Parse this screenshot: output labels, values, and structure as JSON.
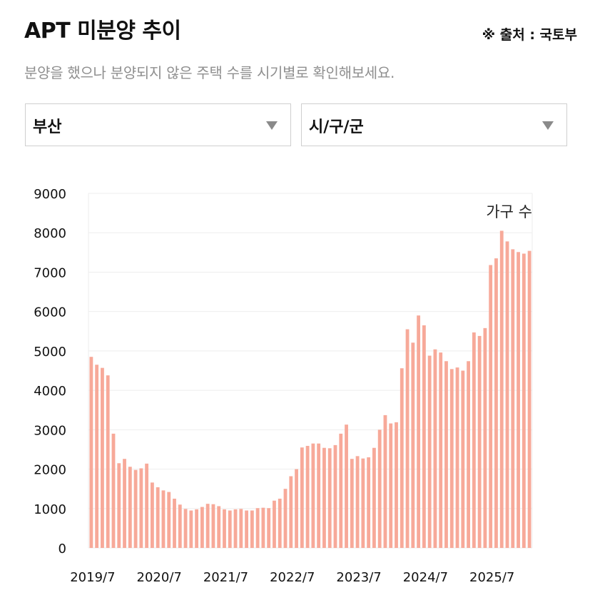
{
  "header": {
    "title": "APT 미분양 추이",
    "source": "※ 출처 : 국토부",
    "subtitle": "분양을 했으나 분양되지 않은 주택 수를 시기별로 확인해보세요."
  },
  "filters": {
    "region": "부산",
    "district": "시/구/군"
  },
  "colors": {
    "bar": "#f7a999",
    "grid": "#eeeeee",
    "axis_text": "#111111"
  },
  "chart_data": {
    "type": "bar",
    "unit_label": "가구 수",
    "ylim": [
      0,
      9000
    ],
    "y_ticks": [
      0,
      1000,
      2000,
      3000,
      4000,
      5000,
      6000,
      7000,
      8000,
      9000
    ],
    "grid": true,
    "x_tick_labels": [
      "2019/7",
      "2020/7",
      "2021/7",
      "2022/7",
      "2023/7",
      "2024/7",
      "2025/7"
    ],
    "categories": [
      "2019/7",
      "2019/8",
      "2019/9",
      "2019/10",
      "2019/11",
      "2019/12",
      "2020/1",
      "2020/2",
      "2020/3",
      "2020/4",
      "2020/5",
      "2020/6",
      "2020/7",
      "2020/8",
      "2020/9",
      "2020/10",
      "2020/11",
      "2020/12",
      "2021/1",
      "2021/2",
      "2021/3",
      "2021/4",
      "2021/5",
      "2021/6",
      "2021/7",
      "2021/8",
      "2021/9",
      "2021/10",
      "2021/11",
      "2021/12",
      "2022/1",
      "2022/2",
      "2022/3",
      "2022/4",
      "2022/5",
      "2022/6",
      "2022/7",
      "2022/8",
      "2022/9",
      "2022/10",
      "2022/11",
      "2022/12",
      "2023/1",
      "2023/2",
      "2023/3",
      "2023/4",
      "2023/5",
      "2023/6",
      "2023/7",
      "2023/8",
      "2023/9",
      "2023/10",
      "2023/11",
      "2023/12",
      "2024/1",
      "2024/2",
      "2024/3",
      "2024/4",
      "2024/5",
      "2024/6",
      "2024/7",
      "2024/8",
      "2024/9",
      "2024/10",
      "2024/11",
      "2024/12",
      "2025/1",
      "2025/2",
      "2025/3",
      "2025/4",
      "2025/5",
      "2025/6",
      "2025/7",
      "2025/8",
      "2025/9",
      "2025/10",
      "2025/11",
      "2025/12",
      "2026/1",
      "2026/2"
    ],
    "values": [
      4850,
      4650,
      4570,
      4380,
      2900,
      2150,
      2260,
      2060,
      1980,
      2020,
      2140,
      1660,
      1540,
      1460,
      1420,
      1250,
      1100,
      990,
      950,
      980,
      1040,
      1120,
      1110,
      1060,
      980,
      950,
      980,
      990,
      950,
      950,
      1010,
      1020,
      1010,
      1200,
      1250,
      1500,
      1820,
      2000,
      2550,
      2590,
      2650,
      2650,
      2540,
      2530,
      2610,
      2900,
      3130,
      2260,
      2330,
      2270,
      2300,
      2540,
      3000,
      3370,
      3160,
      3190,
      4560,
      5550,
      5210,
      5900,
      5650,
      4880,
      5040,
      4960,
      4740,
      4540,
      4580,
      4500,
      4740,
      5470,
      5380,
      5580,
      7180,
      7350,
      8050,
      7780,
      7580,
      7510,
      7470,
      7540
    ]
  }
}
